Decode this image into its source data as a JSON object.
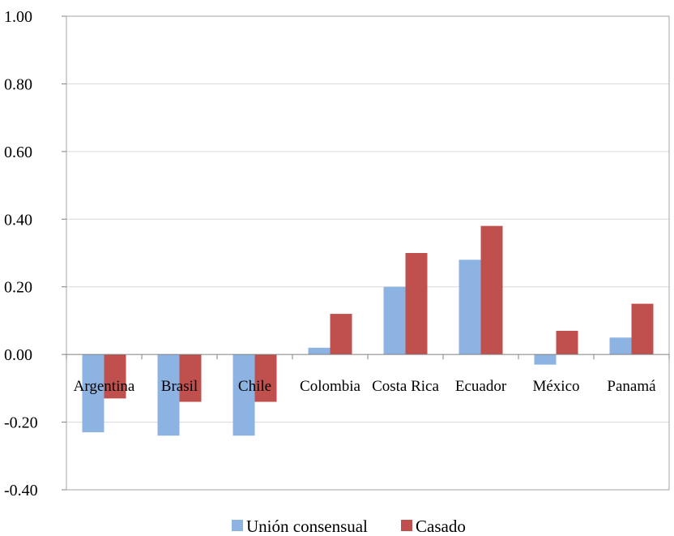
{
  "chart_data": {
    "type": "bar",
    "categories": [
      "Argentina",
      "Brasil",
      "Chile",
      "Colombia",
      "Costa Rica",
      "Ecuador",
      "México",
      "Panamá"
    ],
    "series": [
      {
        "name": "Unión consensual",
        "color": "#8db3e2",
        "values": [
          -0.23,
          -0.24,
          -0.24,
          0.02,
          0.2,
          0.28,
          -0.03,
          0.05
        ]
      },
      {
        "name": "Casado",
        "color": "#c0504d",
        "values": [
          -0.13,
          -0.14,
          -0.14,
          0.12,
          0.3,
          0.38,
          0.07,
          0.15
        ]
      }
    ],
    "ylim": [
      -0.4,
      1.0
    ],
    "yticks": [
      "-0.40",
      "-0.20",
      "0.00",
      "0.20",
      "0.40",
      "0.60",
      "0.80",
      "1.00"
    ],
    "grid": true,
    "legend_position": "bottom"
  }
}
